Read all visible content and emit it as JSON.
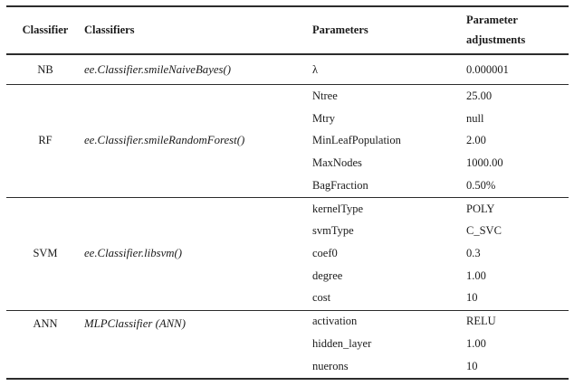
{
  "table": {
    "headers": {
      "classifier": "Classifier",
      "classifiers": "Classifiers",
      "parameters": "Parameters",
      "adjustments": "Parameter adjustments"
    },
    "groups": [
      {
        "classifier": "NB",
        "name": "ee.Classifier.smileNaiveBayes()",
        "params": [
          {
            "p": "λ",
            "v": "0.000001"
          }
        ]
      },
      {
        "classifier": "RF",
        "name": "ee.Classifier.smileRandomForest()",
        "params": [
          {
            "p": "Ntree",
            "v": "25.00"
          },
          {
            "p": "Mtry",
            "v": "null"
          },
          {
            "p": "MinLeafPopulation",
            "v": "2.00"
          },
          {
            "p": "MaxNodes",
            "v": "1000.00"
          },
          {
            "p": "BagFraction",
            "v": "0.50%"
          }
        ]
      },
      {
        "classifier": "SVM",
        "name": "ee.Classifier.libsvm()",
        "params": [
          {
            "p": "kernelType",
            "v": "POLY"
          },
          {
            "p": "svmType",
            "v": "C_SVC"
          },
          {
            "p": "coef0",
            "v": "0.3"
          },
          {
            "p": "degree",
            "v": "1.00"
          },
          {
            "p": "cost",
            "v": "10"
          }
        ]
      },
      {
        "classifier": "ANN",
        "name": "MLPClassifier (ANN)",
        "params": [
          {
            "p": "activation",
            "v": "RELU"
          },
          {
            "p": "hidden_layer",
            "v": "1.00"
          },
          {
            "p": "nuerons",
            "v": "10"
          }
        ]
      }
    ]
  }
}
